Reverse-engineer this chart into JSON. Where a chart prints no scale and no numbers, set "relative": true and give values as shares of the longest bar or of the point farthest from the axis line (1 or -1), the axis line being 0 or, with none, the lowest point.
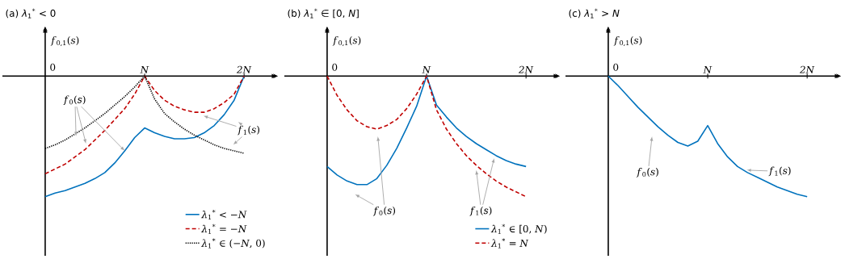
{
  "chart_data": [
    {
      "type": "line",
      "title": "(a) *λ*$_{1}$$^{*}$ < 0",
      "ylabel": "*f*$_{0,1}$(*s*)",
      "relative": true,
      "legend": "bottom right",
      "categories": [
        "0",
        null,
        null,
        null,
        null,
        null,
        null,
        null,
        null,
        null,
        "*N*",
        null,
        null,
        null,
        null,
        null,
        null,
        null,
        null,
        null,
        "*2N*"
      ],
      "series": [
        {
          "name": "*λ*$_{1}$$^{*}$ < −*N*",
          "color": "#0072bd",
          "line_style": "solid",
          "values": [
            -1.0,
            -0.97,
            -0.95,
            -0.92,
            -0.89,
            -0.85,
            -0.8,
            -0.72,
            -0.62,
            -0.51,
            -0.43,
            -0.47,
            -0.5,
            -0.52,
            -0.52,
            -0.51,
            -0.47,
            -0.41,
            -0.32,
            -0.2,
            0
          ]
        },
        {
          "name": "*λ*$_{1}$$^{*}$ = −*N*",
          "color": "#c00000",
          "line_style": "dashed",
          "values": [
            -0.81,
            -0.77,
            -0.73,
            -0.67,
            -0.61,
            -0.53,
            -0.45,
            -0.36,
            -0.27,
            -0.15,
            0,
            -0.12,
            -0.2,
            -0.25,
            -0.28,
            -0.3,
            -0.3,
            -0.27,
            -0.22,
            -0.15,
            0
          ]
        },
        {
          "name": "*λ*$_{1}$$^{*}$ ∈ (−*N*, 0)",
          "color": "#000000",
          "line_style": "dotted",
          "values": [
            -0.6,
            -0.57,
            -0.53,
            -0.48,
            -0.43,
            -0.37,
            -0.31,
            -0.24,
            -0.17,
            -0.09,
            0,
            -0.19,
            -0.31,
            -0.38,
            -0.44,
            -0.49,
            -0.53,
            -0.57,
            -0.6,
            -0.62,
            -0.64
          ]
        }
      ],
      "annotations": [
        "*f*$_{0}$(*s*)",
        "*f*$_{1}$(*s*)"
      ]
    },
    {
      "type": "line",
      "title": "(b) *λ*$_{1}$$^{*}$ ∈ [0, *N*]",
      "ylabel": "*f*$_{0,1}$(*s*)",
      "relative": true,
      "legend": "bottom right",
      "categories": [
        "0",
        null,
        null,
        null,
        null,
        null,
        null,
        null,
        null,
        null,
        "*N*",
        null,
        null,
        null,
        null,
        null,
        null,
        null,
        null,
        null,
        "*2N*"
      ],
      "series": [
        {
          "name": "*λ*$_{1}$$^{*}$ ∈ [0, *N*)",
          "color": "#0072bd",
          "line_style": "solid",
          "values": [
            -0.75,
            -0.82,
            -0.87,
            -0.9,
            -0.9,
            -0.85,
            -0.74,
            -0.6,
            -0.43,
            -0.25,
            0,
            -0.24,
            -0.34,
            -0.43,
            -0.5,
            -0.56,
            -0.61,
            -0.66,
            -0.7,
            -0.73,
            -0.75
          ]
        },
        {
          "name": "*λ*$_{1}$$^{*}$ = *N*",
          "color": "#c00000",
          "line_style": "dashed",
          "values": [
            0,
            -0.16,
            -0.28,
            -0.37,
            -0.42,
            -0.44,
            -0.41,
            -0.36,
            -0.27,
            -0.15,
            0,
            -0.28,
            -0.44,
            -0.56,
            -0.66,
            -0.74,
            -0.81,
            -0.87,
            -0.92,
            -0.96,
            -1.0
          ]
        }
      ],
      "annotations": [
        "*f*$_{0}$(*s*)",
        "*f*$_{1}$(*s*)"
      ]
    },
    {
      "type": "line",
      "title": "(c) *λ*$_{1}$$^{*}$ > *N*",
      "ylabel": "*f*$_{0,1}$(*s*)",
      "relative": true,
      "categories": [
        "0",
        null,
        null,
        null,
        null,
        null,
        null,
        null,
        null,
        null,
        "*N*",
        null,
        null,
        null,
        null,
        null,
        null,
        null,
        null,
        null,
        "*2N*"
      ],
      "series": [
        {
          "color": "#0072bd",
          "line_style": "solid",
          "values": [
            0,
            -0.08,
            -0.17,
            -0.26,
            -0.34,
            -0.42,
            -0.49,
            -0.55,
            -0.58,
            -0.54,
            -0.41,
            -0.56,
            -0.67,
            -0.75,
            -0.8,
            -0.84,
            -0.88,
            -0.92,
            -0.95,
            -0.98,
            -1.0
          ]
        }
      ],
      "annotations": [
        "*f*$_{0}$(*s*)",
        "*f*$_{1}$(*s*)"
      ]
    }
  ]
}
